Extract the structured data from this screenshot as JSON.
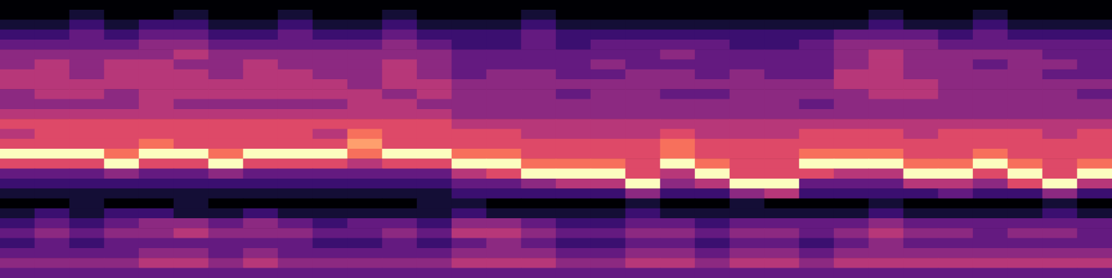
{
  "chart_data": {
    "type": "heatmap",
    "tick_labels": false,
    "grid": false,
    "color_range": [
      0,
      9
    ],
    "cells": [
      [
        0,
        0,
        0,
        0,
        0,
        0,
        0,
        0,
        0,
        0,
        0,
        0,
        0,
        0,
        0,
        0,
        0,
        0,
        0,
        0,
        0,
        0,
        0,
        0,
        0,
        0,
        0,
        0,
        0,
        0,
        0,
        0
      ],
      [
        0,
        0,
        1,
        0,
        0,
        1,
        0,
        0,
        1,
        0,
        0,
        1,
        0,
        0,
        0,
        1,
        0,
        0,
        0,
        0,
        0,
        0,
        0,
        0,
        0,
        1,
        0,
        0,
        1,
        0,
        0,
        0
      ],
      [
        1,
        1,
        2,
        1,
        2,
        2,
        1,
        1,
        2,
        1,
        1,
        2,
        1,
        1,
        1,
        2,
        1,
        1,
        1,
        1,
        1,
        1,
        1,
        1,
        1,
        2,
        1,
        1,
        2,
        1,
        1,
        1
      ],
      [
        2,
        2,
        3,
        2,
        3,
        3,
        2,
        2,
        3,
        2,
        2,
        3,
        2,
        2,
        2,
        3,
        2,
        2,
        2,
        2,
        2,
        2,
        2,
        2,
        3,
        3,
        3,
        2,
        3,
        2,
        2,
        2
      ],
      [
        3,
        3,
        3,
        3,
        4,
        4,
        3,
        3,
        3,
        3,
        3,
        4,
        3,
        2,
        2,
        3,
        2,
        3,
        3,
        3,
        3,
        2,
        2,
        3,
        4,
        4,
        4,
        3,
        3,
        3,
        3,
        3
      ],
      [
        4,
        4,
        4,
        4,
        4,
        5,
        4,
        4,
        4,
        4,
        4,
        4,
        4,
        3,
        3,
        3,
        3,
        3,
        3,
        4,
        3,
        3,
        3,
        3,
        4,
        5,
        4,
        4,
        4,
        4,
        3,
        3
      ],
      [
        4,
        5,
        4,
        5,
        5,
        4,
        4,
        5,
        4,
        4,
        4,
        5,
        4,
        3,
        3,
        3,
        3,
        4,
        3,
        3,
        3,
        3,
        3,
        3,
        4,
        5,
        4,
        4,
        3,
        4,
        4,
        3
      ],
      [
        5,
        5,
        4,
        5,
        5,
        5,
        4,
        5,
        5,
        4,
        4,
        5,
        4,
        3,
        4,
        4,
        3,
        3,
        4,
        4,
        3,
        4,
        3,
        3,
        5,
        5,
        4,
        4,
        4,
        4,
        3,
        3
      ],
      [
        5,
        5,
        5,
        5,
        5,
        5,
        5,
        5,
        5,
        5,
        4,
        5,
        5,
        4,
        4,
        4,
        4,
        4,
        4,
        4,
        4,
        4,
        4,
        4,
        5,
        5,
        5,
        4,
        4,
        4,
        4,
        4
      ],
      [
        4,
        5,
        5,
        4,
        5,
        5,
        5,
        5,
        5,
        5,
        5,
        4,
        5,
        4,
        4,
        4,
        3,
        4,
        4,
        3,
        3,
        4,
        4,
        4,
        4,
        5,
        5,
        4,
        4,
        4,
        4,
        3
      ],
      [
        4,
        4,
        4,
        4,
        5,
        4,
        4,
        4,
        4,
        4,
        5,
        5,
        4,
        4,
        4,
        4,
        4,
        4,
        4,
        4,
        4,
        4,
        4,
        3,
        4,
        4,
        4,
        4,
        4,
        4,
        4,
        4
      ],
      [
        5,
        5,
        5,
        5,
        5,
        5,
        5,
        5,
        5,
        5,
        5,
        5,
        5,
        4,
        4,
        4,
        4,
        4,
        4,
        4,
        4,
        4,
        4,
        4,
        4,
        4,
        4,
        4,
        4,
        4,
        4,
        4
      ],
      [
        6,
        6,
        6,
        6,
        6,
        6,
        6,
        6,
        6,
        6,
        6,
        6,
        6,
        5,
        5,
        5,
        5,
        5,
        5,
        5,
        5,
        5,
        5,
        5,
        5,
        5,
        5,
        5,
        5,
        5,
        5,
        5
      ],
      [
        5,
        6,
        6,
        6,
        6,
        6,
        6,
        6,
        6,
        5,
        7,
        6,
        6,
        6,
        6,
        5,
        5,
        5,
        5,
        6,
        5,
        5,
        5,
        6,
        6,
        6,
        5,
        6,
        6,
        6,
        5,
        6
      ],
      [
        6,
        6,
        6,
        6,
        7,
        6,
        6,
        6,
        6,
        6,
        8,
        6,
        6,
        6,
        6,
        6,
        6,
        6,
        6,
        7,
        6,
        6,
        6,
        6,
        6,
        6,
        6,
        6,
        6,
        6,
        6,
        6
      ],
      [
        9,
        9,
        9,
        7,
        9,
        9,
        7,
        9,
        9,
        9,
        7,
        9,
        9,
        7,
        7,
        6,
        6,
        6,
        6,
        7,
        6,
        6,
        6,
        7,
        7,
        7,
        6,
        6,
        7,
        6,
        6,
        6
      ],
      [
        6,
        6,
        6,
        9,
        6,
        6,
        9,
        6,
        6,
        6,
        5,
        6,
        6,
        9,
        9,
        7,
        7,
        7,
        6,
        9,
        7,
        6,
        6,
        9,
        9,
        9,
        7,
        7,
        9,
        7,
        6,
        7
      ],
      [
        3,
        3,
        3,
        4,
        3,
        3,
        4,
        3,
        3,
        3,
        3,
        3,
        3,
        5,
        6,
        9,
        9,
        9,
        6,
        5,
        9,
        6,
        6,
        6,
        5,
        5,
        9,
        9,
        6,
        9,
        6,
        9
      ],
      [
        2,
        2,
        2,
        2,
        2,
        2,
        2,
        2,
        2,
        2,
        2,
        2,
        2,
        3,
        3,
        4,
        5,
        5,
        9,
        4,
        5,
        9,
        9,
        3,
        3,
        3,
        5,
        5,
        4,
        6,
        9,
        5
      ],
      [
        1,
        1,
        1,
        1,
        1,
        1,
        1,
        1,
        1,
        1,
        1,
        1,
        1,
        2,
        2,
        2,
        2,
        2,
        4,
        2,
        2,
        4,
        5,
        2,
        2,
        2,
        2,
        3,
        2,
        2,
        4,
        2
      ],
      [
        0,
        0,
        1,
        0,
        0,
        1,
        0,
        0,
        0,
        0,
        0,
        0,
        1,
        1,
        0,
        0,
        0,
        0,
        1,
        0,
        0,
        1,
        0,
        0,
        0,
        1,
        0,
        0,
        0,
        0,
        1,
        0
      ],
      [
        1,
        2,
        1,
        2,
        2,
        1,
        1,
        2,
        1,
        1,
        1,
        1,
        1,
        2,
        1,
        1,
        1,
        1,
        2,
        1,
        1,
        1,
        1,
        1,
        1,
        2,
        1,
        1,
        1,
        1,
        2,
        1
      ],
      [
        2,
        3,
        2,
        3,
        4,
        4,
        3,
        4,
        3,
        2,
        3,
        3,
        2,
        4,
        4,
        3,
        2,
        2,
        3,
        3,
        2,
        3,
        3,
        3,
        3,
        4,
        3,
        3,
        3,
        3,
        3,
        3
      ],
      [
        3,
        4,
        3,
        4,
        4,
        5,
        4,
        4,
        4,
        3,
        3,
        4,
        3,
        5,
        5,
        4,
        3,
        3,
        4,
        4,
        3,
        4,
        4,
        3,
        4,
        5,
        4,
        4,
        3,
        4,
        4,
        3
      ],
      [
        2,
        3,
        2,
        3,
        3,
        3,
        3,
        3,
        3,
        2,
        2,
        3,
        2,
        3,
        4,
        3,
        2,
        2,
        3,
        3,
        2,
        3,
        3,
        2,
        3,
        4,
        3,
        3,
        3,
        3,
        3,
        3
      ],
      [
        3,
        3,
        3,
        3,
        4,
        4,
        3,
        4,
        3,
        3,
        3,
        3,
        3,
        4,
        4,
        4,
        3,
        3,
        4,
        4,
        3,
        4,
        4,
        3,
        4,
        4,
        4,
        4,
        4,
        4,
        4,
        4
      ],
      [
        4,
        4,
        4,
        4,
        5,
        5,
        4,
        5,
        4,
        4,
        4,
        4,
        4,
        5,
        5,
        5,
        4,
        4,
        5,
        5,
        4,
        5,
        5,
        4,
        5,
        5,
        5,
        5,
        5,
        5,
        5,
        5
      ],
      [
        3,
        3,
        3,
        3,
        3,
        3,
        3,
        3,
        3,
        3,
        3,
        3,
        3,
        3,
        3,
        3,
        3,
        3,
        3,
        3,
        3,
        3,
        3,
        3,
        3,
        3,
        3,
        3,
        3,
        3,
        3,
        3
      ]
    ]
  }
}
